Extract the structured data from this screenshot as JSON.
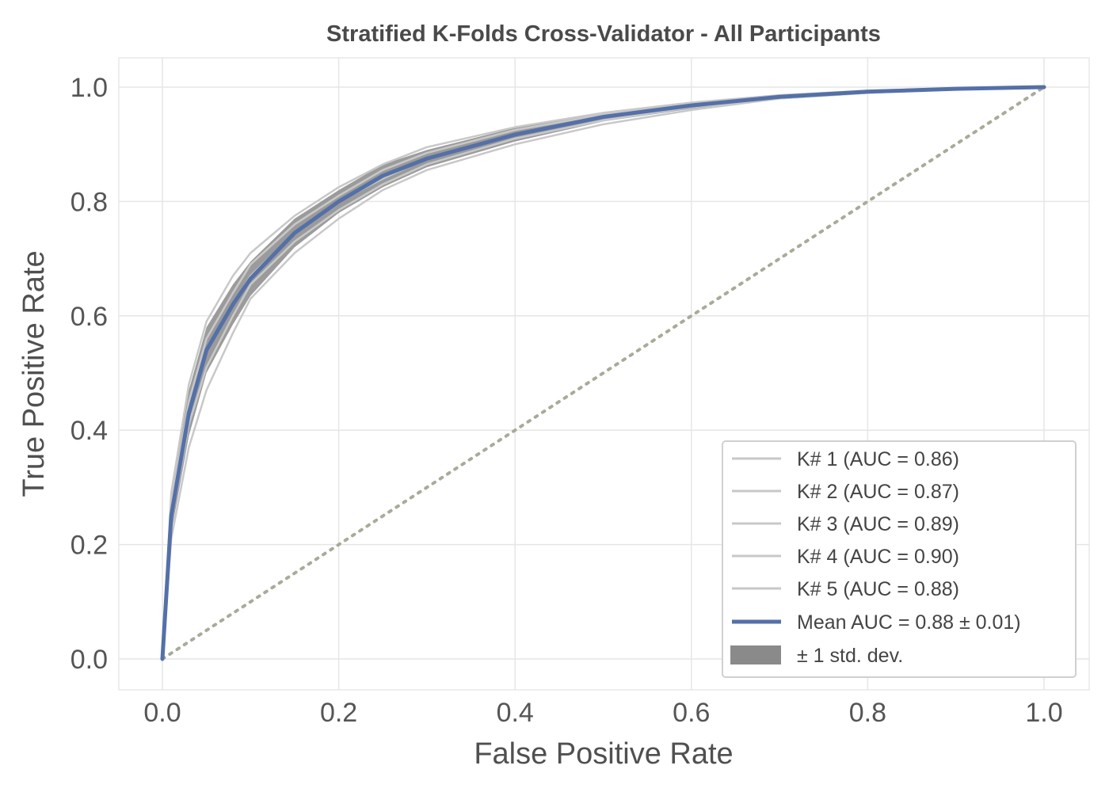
{
  "chart_data": {
    "type": "line",
    "title": "Stratified K-Folds Cross-Validator - All Participants",
    "xlabel": "False Positive Rate",
    "ylabel": "True Positive Rate",
    "xlim": [
      -0.05,
      1.03
    ],
    "ylim": [
      -0.05,
      1.05
    ],
    "xticks": [
      0.0,
      0.2,
      0.4,
      0.6,
      0.8,
      1.0
    ],
    "xtick_labels": [
      "0.0",
      "0.2",
      "0.4",
      "0.6",
      "0.8",
      "1.0"
    ],
    "yticks": [
      0.0,
      0.2,
      0.4,
      0.6,
      0.8,
      1.0
    ],
    "ytick_labels": [
      "0.0",
      "0.2",
      "0.4",
      "0.6",
      "0.8",
      "1.0"
    ],
    "grid": true,
    "legend_position": "lower-right",
    "colors": {
      "mean": "#5470a8",
      "folds": "#c8c8c8",
      "band": "#8a8a8a",
      "chance": "#a8ab99",
      "grid": "#e6e6e6"
    },
    "series": [
      {
        "name": "K# 1 (AUC = 0.86)",
        "x": [
          0,
          0.01,
          0.03,
          0.05,
          0.08,
          0.1,
          0.15,
          0.2,
          0.25,
          0.3,
          0.4,
          0.5,
          0.6,
          0.7,
          0.8,
          0.9,
          1.0
        ],
        "y": [
          0,
          0.21,
          0.37,
          0.47,
          0.57,
          0.63,
          0.71,
          0.77,
          0.82,
          0.855,
          0.9,
          0.935,
          0.96,
          0.98,
          0.99,
          0.997,
          1.0
        ]
      },
      {
        "name": "K# 2 (AUC = 0.87)",
        "x": [
          0,
          0.01,
          0.03,
          0.05,
          0.08,
          0.1,
          0.15,
          0.2,
          0.25,
          0.3,
          0.4,
          0.5,
          0.6,
          0.7,
          0.8,
          0.9,
          1.0
        ],
        "y": [
          0,
          0.24,
          0.41,
          0.51,
          0.6,
          0.655,
          0.73,
          0.785,
          0.83,
          0.865,
          0.91,
          0.942,
          0.965,
          0.98,
          0.99,
          0.997,
          1.0
        ]
      },
      {
        "name": "K# 3 (AUC = 0.89)",
        "x": [
          0,
          0.01,
          0.03,
          0.05,
          0.08,
          0.1,
          0.15,
          0.2,
          0.25,
          0.3,
          0.4,
          0.5,
          0.6,
          0.7,
          0.8,
          0.9,
          1.0
        ],
        "y": [
          0,
          0.27,
          0.45,
          0.56,
          0.64,
          0.69,
          0.76,
          0.81,
          0.855,
          0.885,
          0.925,
          0.952,
          0.972,
          0.985,
          0.993,
          0.998,
          1.0
        ]
      },
      {
        "name": "K# 4 (AUC = 0.90)",
        "x": [
          0,
          0.01,
          0.03,
          0.05,
          0.08,
          0.1,
          0.15,
          0.2,
          0.25,
          0.3,
          0.4,
          0.5,
          0.6,
          0.7,
          0.8,
          0.9,
          1.0
        ],
        "y": [
          0,
          0.29,
          0.48,
          0.59,
          0.67,
          0.71,
          0.775,
          0.825,
          0.865,
          0.895,
          0.93,
          0.955,
          0.973,
          0.986,
          0.994,
          0.998,
          1.0
        ]
      },
      {
        "name": "K# 5 (AUC = 0.88)",
        "x": [
          0,
          0.01,
          0.03,
          0.05,
          0.08,
          0.1,
          0.15,
          0.2,
          0.25,
          0.3,
          0.4,
          0.5,
          0.6,
          0.7,
          0.8,
          0.9,
          1.0
        ],
        "y": [
          0,
          0.25,
          0.43,
          0.54,
          0.62,
          0.67,
          0.745,
          0.8,
          0.84,
          0.875,
          0.918,
          0.948,
          0.968,
          0.982,
          0.992,
          0.997,
          1.0
        ]
      },
      {
        "name": "Mean AUC = 0.88 ± 0.01)",
        "x": [
          0,
          0.01,
          0.03,
          0.05,
          0.08,
          0.1,
          0.15,
          0.2,
          0.25,
          0.3,
          0.4,
          0.5,
          0.6,
          0.7,
          0.8,
          0.9,
          1.0
        ],
        "y": [
          0,
          0.25,
          0.43,
          0.54,
          0.62,
          0.665,
          0.745,
          0.8,
          0.845,
          0.875,
          0.917,
          0.948,
          0.968,
          0.983,
          0.992,
          0.997,
          1.0
        ]
      }
    ],
    "band": {
      "name": "± 1 std. dev.",
      "x": [
        0,
        0.01,
        0.03,
        0.05,
        0.08,
        0.1,
        0.15,
        0.2,
        0.25,
        0.3,
        0.4,
        0.5,
        0.6,
        0.7,
        0.8,
        0.9,
        1.0
      ],
      "lower": [
        0,
        0.22,
        0.39,
        0.5,
        0.585,
        0.635,
        0.72,
        0.78,
        0.825,
        0.86,
        0.905,
        0.94,
        0.962,
        0.98,
        0.99,
        0.996,
        1.0
      ],
      "upper": [
        0,
        0.28,
        0.47,
        0.58,
        0.655,
        0.695,
        0.77,
        0.82,
        0.865,
        0.89,
        0.929,
        0.956,
        0.974,
        0.986,
        0.994,
        0.998,
        1.0
      ]
    },
    "chance_line": {
      "x": [
        0,
        1
      ],
      "y": [
        0,
        1
      ]
    }
  }
}
